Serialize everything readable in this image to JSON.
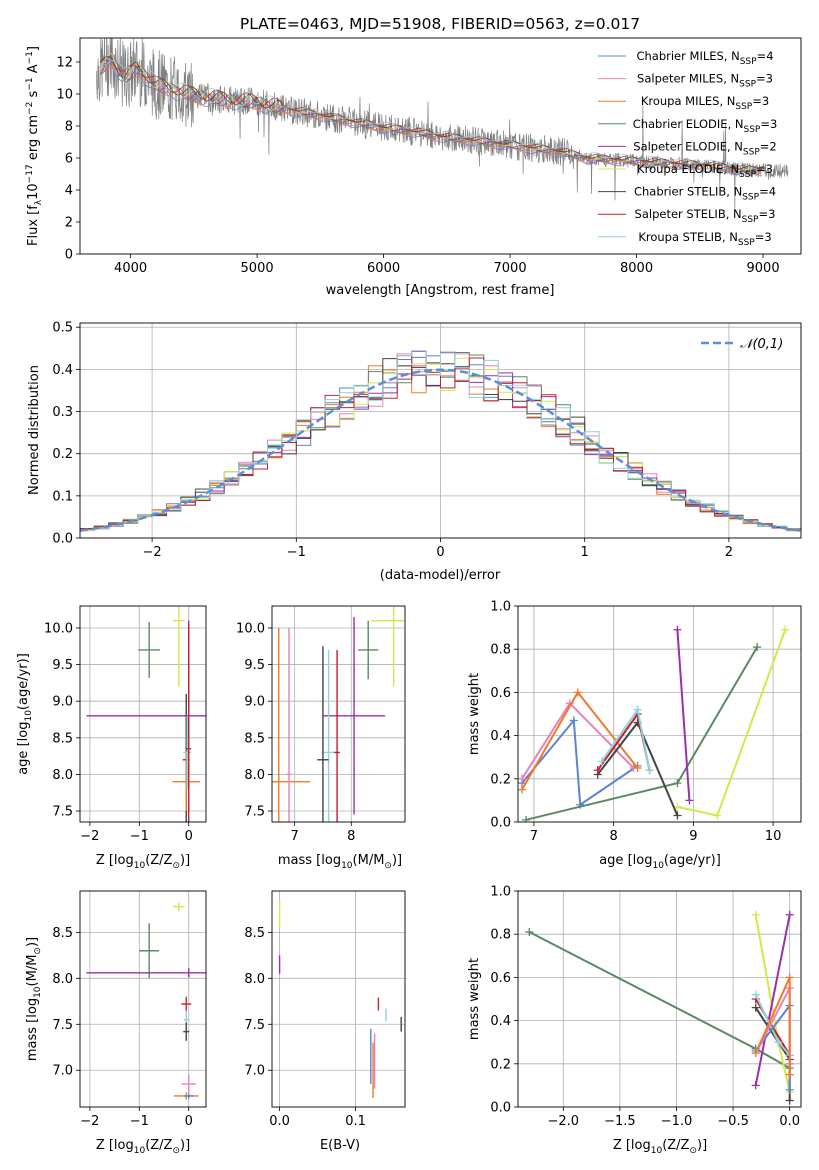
{
  "title": "PLATE=0463, MJD=51908, FIBERID=0563, z=0.017",
  "models": [
    {
      "name": "Chabrier MILES",
      "nssp": "4",
      "color": "#5b84d1"
    },
    {
      "name": "Salpeter MILES",
      "nssp": "3",
      "color": "#e882b8"
    },
    {
      "name": "Kroupa MILES",
      "nssp": "3",
      "color": "#ee7b2c"
    },
    {
      "name": "Chabrier ELODIE",
      "nssp": "3",
      "color": "#5a8a64"
    },
    {
      "name": "Salpeter ELODIE",
      "nssp": "2",
      "color": "#9b2fae"
    },
    {
      "name": "Kroupa ELODIE",
      "nssp": "3",
      "color": "#d4e84a"
    },
    {
      "name": "Chabrier STELIB",
      "nssp": "4",
      "color": "#444444"
    },
    {
      "name": "Salpeter STELIB",
      "nssp": "3",
      "color": "#c8202a"
    },
    {
      "name": "Kroupa STELIB",
      "nssp": "3",
      "color": "#8fd3dc"
    }
  ],
  "chart_data": [
    {
      "id": "spectrum",
      "type": "line",
      "title": "PLATE=0463, MJD=51908, FIBERID=0563, z=0.017",
      "xlabel": "wavelength [Angstrom, rest frame]",
      "ylabel": "Flux [f_λ10^-17 erg cm^-2 s^-1 A^-1]",
      "xlim": [
        3600,
        9300
      ],
      "ylim": [
        0,
        13.5
      ],
      "xticks": [
        4000,
        5000,
        6000,
        7000,
        8000,
        9000
      ],
      "yticks": [
        0,
        2,
        4,
        6,
        8,
        10,
        12
      ],
      "grid": false,
      "legend": "top-right",
      "data_color": "#808080",
      "x": [
        3750,
        3850,
        3950,
        4050,
        4200,
        4400,
        4600,
        4800,
        5000,
        5200,
        5400,
        5600,
        5800,
        6000,
        6200,
        6400,
        6600,
        6800,
        7000,
        7200,
        7400,
        7600,
        7800,
        8000,
        8200,
        8400,
        8600,
        8800,
        9000
      ],
      "y": [
        11.5,
        12.2,
        11.0,
        11.6,
        10.6,
        10.1,
        9.8,
        9.6,
        9.5,
        9.1,
        8.8,
        8.5,
        8.2,
        7.9,
        7.7,
        7.4,
        7.2,
        7.0,
        6.8,
        6.6,
        6.4,
        6.0,
        5.9,
        5.8,
        5.7,
        5.6,
        5.5,
        5.3,
        5.2
      ]
    },
    {
      "id": "residuals",
      "type": "histogram",
      "xlabel": "(data-model)/error",
      "ylabel": "Normed distribution",
      "xlim": [
        -2.5,
        2.5
      ],
      "ylim": [
        0,
        0.51
      ],
      "xticks": [
        -2,
        -1,
        0,
        1,
        2
      ],
      "yticks": [
        0.0,
        0.1,
        0.2,
        0.3,
        0.4,
        0.5
      ],
      "grid": true,
      "legend": "top-right",
      "reference_curve": {
        "name": "𝒩(0,1)",
        "color": "#5b8fd6",
        "style": "dashed"
      },
      "bin_width": 0.1
    },
    {
      "id": "age_vs_Z",
      "type": "scatter-errorbar",
      "xlabel": "Z [log10(Z/Z⊙)]",
      "ylabel": "age  [log10(age/yr)]",
      "xlim": [
        -2.2,
        0.35
      ],
      "ylim": [
        7.35,
        10.3
      ],
      "xticks": [
        -2,
        -1,
        0
      ],
      "yticks": [
        7.5,
        8.0,
        8.5,
        9.0,
        9.5,
        10.0
      ],
      "grid": true,
      "points": [
        {
          "model": 3,
          "x": -0.8,
          "y": 9.7,
          "xerr": 0.22,
          "yerr": 0.38
        },
        {
          "model": 4,
          "x": 0.0,
          "y": 8.8,
          "xerr": 2.07,
          "yerr": 1.3
        },
        {
          "model": 5,
          "x": -0.2,
          "y": 10.1,
          "xerr": 0.12,
          "yerr": 0.9
        },
        {
          "model": 6,
          "x": -0.05,
          "y": 8.2,
          "xerr": 0.07,
          "yerr": 0.9
        },
        {
          "model": 2,
          "x": -0.05,
          "y": 7.9,
          "xerr": 0.28,
          "yerr": 0.4
        },
        {
          "model": 8,
          "x": -0.03,
          "y": 8.3,
          "xerr": 0.08,
          "yerr": 0.5
        },
        {
          "model": 7,
          "x": 0.0,
          "y": 8.35,
          "xerr": 0.05,
          "yerr": 1.7
        }
      ]
    },
    {
      "id": "age_vs_mass",
      "type": "scatter-errorbar",
      "xlabel": "mass [log10(M/M⊙)]",
      "xlim": [
        6.6,
        8.95
      ],
      "ylim": [
        7.35,
        10.3
      ],
      "xticks": [
        7,
        8
      ],
      "yticks": [
        7.5,
        8.0,
        8.5,
        9.0,
        9.5,
        10.0
      ],
      "grid": true,
      "points": [
        {
          "model": 3,
          "x": 8.3,
          "y": 9.7,
          "xerr": 0.18,
          "yerr": 0.4
        },
        {
          "model": 4,
          "x": 8.05,
          "y": 8.8,
          "xerr": 0.55,
          "yerr": 1.35
        },
        {
          "model": 5,
          "x": 8.75,
          "y": 10.1,
          "xerr": 0.4,
          "yerr": 0.9
        },
        {
          "model": 2,
          "x": 6.72,
          "y": 7.9,
          "xerr": 0.55,
          "yerr": 2.1
        },
        {
          "model": 8,
          "x": 7.6,
          "y": 8.3,
          "xerr": 0.12,
          "yerr": 1.4
        },
        {
          "model": 6,
          "x": 7.5,
          "y": 8.2,
          "xerr": 0.1,
          "yerr": 1.55
        },
        {
          "model": 7,
          "x": 7.75,
          "y": 8.3,
          "xerr": 0.05,
          "yerr": 1.4
        },
        {
          "model": 1,
          "x": 6.9,
          "y": 8.0,
          "xerr": 0.05,
          "yerr": 2.0
        }
      ]
    },
    {
      "id": "weight_vs_age",
      "type": "line",
      "xlabel": "age  [log10(age/yr)]",
      "ylabel": "mass weight",
      "xlim": [
        6.8,
        10.35
      ],
      "ylim": [
        0,
        1
      ],
      "xticks": [
        7,
        8,
        9,
        10
      ],
      "yticks": [
        0.0,
        0.2,
        0.4,
        0.6,
        0.8,
        1.0
      ],
      "grid": true,
      "series": [
        {
          "model": 0,
          "x": [
            6.85,
            7.5,
            7.58,
            8.3
          ],
          "y": [
            0.18,
            0.47,
            0.08,
            0.26
          ]
        },
        {
          "model": 1,
          "x": [
            6.85,
            7.45,
            8.25
          ],
          "y": [
            0.2,
            0.55,
            0.25
          ]
        },
        {
          "model": 2,
          "x": [
            6.85,
            7.55,
            8.3
          ],
          "y": [
            0.15,
            0.6,
            0.25
          ]
        },
        {
          "model": 3,
          "x": [
            6.9,
            8.8,
            9.8
          ],
          "y": [
            0.01,
            0.18,
            0.81
          ]
        },
        {
          "model": 4,
          "x": [
            8.8,
            8.95
          ],
          "y": [
            0.89,
            0.1
          ]
        },
        {
          "model": 5,
          "x": [
            8.8,
            9.3,
            10.15
          ],
          "y": [
            0.07,
            0.03,
            0.89
          ]
        },
        {
          "model": 6,
          "x": [
            7.8,
            8.3,
            8.8
          ],
          "y": [
            0.22,
            0.46,
            0.03
          ]
        },
        {
          "model": 7,
          "x": [
            7.8,
            8.3,
            8.45
          ],
          "y": [
            0.24,
            0.5,
            0.24
          ]
        },
        {
          "model": 8,
          "x": [
            7.85,
            8.3,
            8.45
          ],
          "y": [
            0.28,
            0.52,
            0.24
          ]
        }
      ]
    },
    {
      "id": "mass_vs_Z",
      "type": "scatter-errorbar",
      "xlabel": "Z [log10(Z/Z⊙)]",
      "ylabel": "mass [log10(M/M⊙)]",
      "xlim": [
        -2.2,
        0.35
      ],
      "ylim": [
        6.6,
        8.95
      ],
      "xticks": [
        -2,
        -1,
        0
      ],
      "yticks": [
        7.0,
        7.5,
        8.0,
        8.5
      ],
      "grid": true,
      "points": [
        {
          "model": 3,
          "x": -0.8,
          "y": 8.3,
          "xerr": 0.2,
          "yerr": 0.3
        },
        {
          "model": 4,
          "x": 0.0,
          "y": 8.06,
          "xerr": 2.07,
          "yerr": 0.05
        },
        {
          "model": 5,
          "x": -0.2,
          "y": 8.78,
          "xerr": 0.12,
          "yerr": 0.05
        },
        {
          "model": 7,
          "x": -0.05,
          "y": 7.72,
          "xerr": 0.1,
          "yerr": 0.08
        },
        {
          "model": 8,
          "x": -0.05,
          "y": 7.55,
          "xerr": 0.05,
          "yerr": 0.1
        },
        {
          "model": 6,
          "x": -0.05,
          "y": 7.42,
          "xerr": 0.06,
          "yerr": 0.1
        },
        {
          "model": 1,
          "x": 0.0,
          "y": 6.85,
          "xerr": 0.15,
          "yerr": 0.1
        },
        {
          "model": 2,
          "x": -0.05,
          "y": 6.72,
          "xerr": 0.25,
          "yerr": 0.04
        },
        {
          "model": 0,
          "x": 0.0,
          "y": 6.72,
          "xerr": 0.1,
          "yerr": 0.03
        }
      ]
    },
    {
      "id": "mass_vs_ebv",
      "type": "scatter-errorbar",
      "xlabel": "E(B-V)",
      "xlim": [
        -0.01,
        0.165
      ],
      "ylim": [
        6.6,
        8.95
      ],
      "xticks": [
        0.0,
        0.1
      ],
      "yticks": [
        7.0,
        7.5,
        8.0,
        8.5
      ],
      "grid": true,
      "points": [
        {
          "model": 5,
          "x": 0.0,
          "y": 8.7,
          "xerr": 0.0,
          "yerr": 0.15
        },
        {
          "model": 4,
          "x": 0.0,
          "y": 8.15,
          "xerr": 0.0,
          "yerr": 0.1
        },
        {
          "model": 7,
          "x": 0.13,
          "y": 7.72,
          "xerr": 0.0,
          "yerr": 0.07
        },
        {
          "model": 8,
          "x": 0.14,
          "y": 7.6,
          "xerr": 0.0,
          "yerr": 0.07
        },
        {
          "model": 6,
          "x": 0.16,
          "y": 7.5,
          "xerr": 0.0,
          "yerr": 0.08
        },
        {
          "model": 0,
          "x": 0.12,
          "y": 7.15,
          "xerr": 0.0,
          "yerr": 0.3
        },
        {
          "model": 2,
          "x": 0.123,
          "y": 7.0,
          "xerr": 0.0,
          "yerr": 0.3
        },
        {
          "model": 1,
          "x": 0.125,
          "y": 7.1,
          "xerr": 0.0,
          "yerr": 0.3
        }
      ]
    },
    {
      "id": "weight_vs_Z",
      "type": "line",
      "xlabel": "Z [log10(Z/Z⊙)]",
      "ylabel": "mass weight",
      "xlim": [
        -2.4,
        0.1
      ],
      "ylim": [
        0,
        1
      ],
      "xticks": [
        -2.0,
        -1.5,
        -1.0,
        -0.5,
        0.0
      ],
      "yticks": [
        0.0,
        0.2,
        0.4,
        0.6,
        0.8,
        1.0
      ],
      "grid": true,
      "series": [
        {
          "model": 3,
          "x": [
            -2.3,
            -0.3,
            0.0
          ],
          "y": [
            0.81,
            0.27,
            0.18
          ]
        },
        {
          "model": 5,
          "x": [
            -0.3,
            -0.1,
            0.0
          ],
          "y": [
            0.89,
            0.3,
            0.07
          ]
        },
        {
          "model": 4,
          "x": [
            -0.3,
            0.0
          ],
          "y": [
            0.1,
            0.89
          ]
        },
        {
          "model": 6,
          "x": [
            -0.3,
            0.0,
            0.0
          ],
          "y": [
            0.46,
            0.22,
            0.03
          ]
        },
        {
          "model": 7,
          "x": [
            -0.3,
            0.0
          ],
          "y": [
            0.5,
            0.24
          ]
        },
        {
          "model": 8,
          "x": [
            -0.3,
            -0.1,
            0.0
          ],
          "y": [
            0.52,
            0.3,
            0.24
          ]
        },
        {
          "model": 0,
          "x": [
            -0.3,
            0.0,
            0.0
          ],
          "y": [
            0.26,
            0.47,
            0.08
          ]
        },
        {
          "model": 1,
          "x": [
            -0.3,
            0.0,
            0.0
          ],
          "y": [
            0.25,
            0.55,
            0.2
          ]
        },
        {
          "model": 2,
          "x": [
            -0.3,
            0.0,
            0.0
          ],
          "y": [
            0.25,
            0.6,
            0.15
          ]
        }
      ]
    }
  ]
}
